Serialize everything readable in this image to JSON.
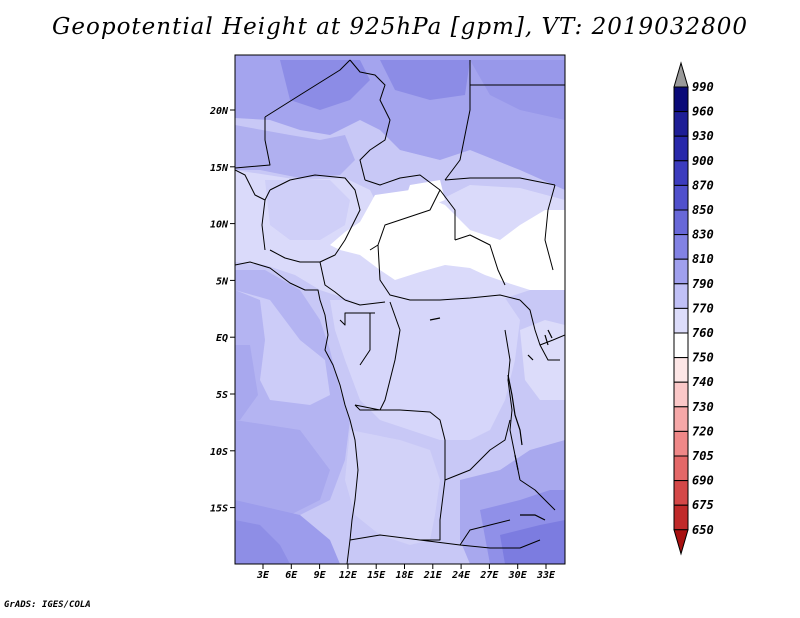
{
  "title": "Geopotential Height at 925hPa [gpm], VT: 2019032800",
  "footer": "GrADS: IGES/COLA",
  "lat_labels": [
    "20N",
    "15N",
    "10N",
    "5N",
    "EQ",
    "5S",
    "10S",
    "15S"
  ],
  "lon_labels": [
    "3E",
    "6E",
    "9E",
    "12E",
    "15E",
    "18E",
    "21E",
    "24E",
    "27E",
    "30E",
    "33E"
  ],
  "colorbar": {
    "levels": [
      "990",
      "960",
      "930",
      "900",
      "870",
      "850",
      "830",
      "810",
      "790",
      "770",
      "760",
      "750",
      "740",
      "730",
      "720",
      "705",
      "690",
      "675",
      "650"
    ],
    "colors": [
      "#0a0a78",
      "#1e1e96",
      "#2828aa",
      "#3c3cbe",
      "#5050cc",
      "#6868d8",
      "#8282e4",
      "#a0a0ee",
      "#c0c0f6",
      "#dcdcfa",
      "#ffffff",
      "#fde6e6",
      "#fbc8c8",
      "#f6a8a8",
      "#ef8888",
      "#e46868",
      "#d44848",
      "#c02a2a",
      "#a81010"
    ],
    "top_arrow_color": "#9a9a9a"
  }
}
